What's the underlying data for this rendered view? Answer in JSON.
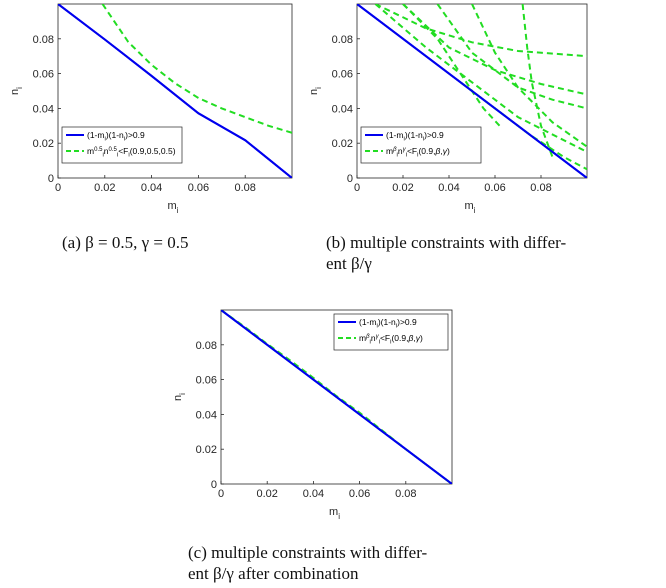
{
  "panels": [
    {
      "caption_line1": "(a) β = 0.5, γ = 0.5",
      "caption_line2": ""
    },
    {
      "caption_line1": "(b) multiple constraints with differ-",
      "caption_line2": "ent β/γ"
    },
    {
      "caption_line1": "(c) multiple constraints with differ-",
      "caption_line2": "ent β/γ after combination"
    }
  ],
  "axes": {
    "xlabel": "m",
    "xlabel_sub": "i",
    "ylabel": "n",
    "ylabel_sub": "i",
    "xlim": [
      0,
      0.1
    ],
    "ylim": [
      0,
      0.1
    ],
    "xticks": [
      "0",
      "0.02",
      "0.04",
      "0.06",
      "0.08"
    ],
    "yticks": [
      "0",
      "0.02",
      "0.04",
      "0.06",
      "0.08"
    ]
  },
  "colors": {
    "blue": "#0000ee",
    "green": "#22dd22"
  },
  "chart_data": [
    {
      "type": "line",
      "series": [
        {
          "name": "(1-m_i)(1-n_i)>0.9",
          "style": "solid",
          "color": "#0000ee",
          "x": [
            0,
            0.02,
            0.04,
            0.06,
            0.08,
            0.1
          ],
          "y": [
            0.1,
            0.0796,
            0.0587,
            0.0372,
            0.0217,
            0.0
          ]
        },
        {
          "name": "m_i^0.5 n_i^0.5 < F_i(0.9,0.5,0.5)",
          "style": "dashed",
          "color": "#22dd22",
          "x": [
            0.019,
            0.03,
            0.04,
            0.05,
            0.06,
            0.07,
            0.08,
            0.09,
            0.1
          ],
          "y": [
            0.1,
            0.0782,
            0.065,
            0.0545,
            0.046,
            0.04,
            0.035,
            0.03,
            0.026
          ]
        }
      ]
    },
    {
      "type": "line",
      "series": [
        {
          "name": "(1-m_i)(1-n_i)>0.9",
          "style": "solid",
          "color": "#0000ee",
          "x": [
            0,
            0.1
          ],
          "y": [
            0.1,
            0.0
          ]
        },
        {
          "name": "m_i^β n_i^γ < F_i(0.9,β,γ)",
          "style": "dashed",
          "color": "#22dd22",
          "curves": [
            {
              "x": [
                0.008,
                0.03,
                0.05,
                0.07,
                0.1
              ],
              "y": [
                0.1,
                0.086,
                0.078,
                0.073,
                0.07
              ]
            },
            {
              "x": [
                0.02,
                0.04,
                0.06,
                0.08,
                0.1
              ],
              "y": [
                0.1,
                0.075,
                0.062,
                0.054,
                0.048
              ]
            },
            {
              "x": [
                0.035,
                0.05,
                0.07,
                0.085,
                0.1
              ],
              "y": [
                0.1,
                0.072,
                0.052,
                0.045,
                0.04
              ]
            },
            {
              "x": [
                0.008,
                0.03,
                0.05,
                0.07,
                0.1
              ],
              "y": [
                0.1,
                0.075,
                0.055,
                0.035,
                0.015
              ]
            },
            {
              "x": [
                0.05,
                0.06,
                0.07,
                0.085,
                0.1
              ],
              "y": [
                0.1,
                0.072,
                0.052,
                0.032,
                0.018
              ]
            },
            {
              "x": [
                0.072,
                0.074,
                0.076,
                0.08,
                0.085
              ],
              "y": [
                0.1,
                0.075,
                0.055,
                0.03,
                0.012
              ]
            },
            {
              "x": [
                0.02,
                0.035,
                0.045,
                0.055,
                0.062
              ],
              "y": [
                0.1,
                0.08,
                0.06,
                0.04,
                0.03
              ]
            },
            {
              "x": [
                0.045,
                0.06,
                0.075,
                0.09,
                0.1
              ],
              "y": [
                0.055,
                0.04,
                0.025,
                0.012,
                0.005
              ]
            }
          ]
        }
      ]
    },
    {
      "type": "line",
      "series": [
        {
          "name": "(1-m_i)(1-n_i)>0.9",
          "style": "solid",
          "color": "#0000ee",
          "x": [
            0,
            0.1
          ],
          "y": [
            0.1,
            0.0
          ]
        },
        {
          "name": "m_i^β n_i^γ < F_i(0.9,β,γ)",
          "style": "dashed",
          "color": "#22dd22",
          "x": [
            0,
            0.01,
            0.02,
            0.03,
            0.04,
            0.05,
            0.06,
            0.07,
            0.08,
            0.09,
            0.1
          ],
          "y": [
            0.1,
            0.0905,
            0.0805,
            0.071,
            0.061,
            0.0505,
            0.041,
            0.0305,
            0.02,
            0.01,
            0.0
          ]
        }
      ]
    }
  ]
}
